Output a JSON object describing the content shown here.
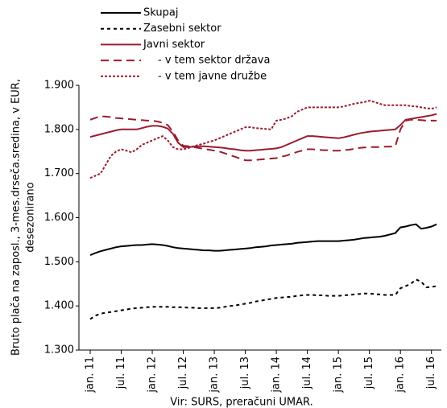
{
  "chart_data": {
    "type": "line",
    "y_label": [
      "Bruto plača na zaposl., 3-mes.drseča.sredina, v EUR,",
      "desezonirano"
    ],
    "source": "Vir: SURS, preračuni UMAR.",
    "categories": [
      "jan. 11",
      null,
      null,
      null,
      null,
      null,
      "jul. 11",
      null,
      null,
      null,
      null,
      null,
      "jan. 12",
      null,
      null,
      null,
      null,
      null,
      "jul. 12",
      null,
      null,
      null,
      null,
      null,
      "jan. 13",
      null,
      null,
      null,
      null,
      null,
      "jul. 13",
      null,
      null,
      null,
      null,
      null,
      "jan. 14",
      null,
      null,
      null,
      null,
      null,
      "jul. 14",
      null,
      null,
      null,
      null,
      null,
      "jan. 15",
      null,
      null,
      null,
      null,
      null,
      "jul. 15",
      null,
      null,
      null,
      null,
      null,
      "jan. 16",
      null,
      null,
      null,
      null,
      null,
      "jul. 16",
      null
    ],
    "ylim": [
      1300,
      1900
    ],
    "yticks": [
      {
        "value": 1300,
        "label": "1.300"
      },
      {
        "value": 1400,
        "label": "1.400"
      },
      {
        "value": 1500,
        "label": "1.500"
      },
      {
        "value": 1600,
        "label": "1.600"
      },
      {
        "value": 1700,
        "label": "1.700"
      },
      {
        "value": 1800,
        "label": "1.800"
      },
      {
        "value": 1900,
        "label": "1.900"
      }
    ],
    "grid": false,
    "series": [
      {
        "name": "Skupaj",
        "color": "#000000",
        "linestyle": "solid",
        "values": [
          1515,
          1520,
          1524,
          1527,
          1530,
          1533,
          1535,
          1536,
          1537,
          1538,
          1538,
          1539,
          1540,
          1539,
          1538,
          1536,
          1533,
          1531,
          1530,
          1529,
          1528,
          1527,
          1526,
          1526,
          1525,
          1525,
          1526,
          1527,
          1528,
          1529,
          1530,
          1531,
          1533,
          1534,
          1535,
          1537,
          1538,
          1539,
          1540,
          1541,
          1543,
          1544,
          1545,
          1546,
          1547,
          1547,
          1547,
          1547,
          1547,
          1548,
          1549,
          1550,
          1552,
          1554,
          1555,
          1556,
          1557,
          1559,
          1562,
          1565,
          1578,
          1580,
          1583,
          1585,
          1575,
          1577,
          1580,
          1585
        ]
      },
      {
        "name": "Zasebni sektor",
        "color": "#000000",
        "linestyle": "dashed",
        "values": [
          1370,
          1378,
          1382,
          1385,
          1386,
          1388,
          1390,
          1392,
          1394,
          1395,
          1396,
          1397,
          1398,
          1398,
          1398,
          1398,
          1397,
          1397,
          1397,
          1396,
          1396,
          1395,
          1395,
          1395,
          1395,
          1396,
          1398,
          1400,
          1401,
          1403,
          1405,
          1407,
          1410,
          1412,
          1414,
          1416,
          1418,
          1419,
          1420,
          1421,
          1423,
          1424,
          1425,
          1425,
          1424,
          1424,
          1423,
          1423,
          1423,
          1424,
          1425,
          1426,
          1427,
          1428,
          1428,
          1427,
          1426,
          1425,
          1425,
          1425,
          1440,
          1445,
          1450,
          1460,
          1455,
          1442,
          1443,
          1445
        ]
      },
      {
        "name": "Javni sektor",
        "color": "#9b1c2e",
        "linestyle": "solid",
        "values": [
          1783,
          1786,
          1789,
          1792,
          1795,
          1798,
          1800,
          1800,
          1800,
          1800,
          1803,
          1806,
          1808,
          1808,
          1806,
          1802,
          1790,
          1770,
          1760,
          1760,
          1761,
          1762,
          1762,
          1761,
          1760,
          1759,
          1758,
          1756,
          1755,
          1753,
          1752,
          1752,
          1753,
          1754,
          1755,
          1756,
          1757,
          1760,
          1765,
          1770,
          1775,
          1780,
          1785,
          1785,
          1784,
          1783,
          1782,
          1781,
          1780,
          1782,
          1785,
          1788,
          1791,
          1793,
          1795,
          1796,
          1797,
          1798,
          1799,
          1800,
          1810,
          1822,
          1824,
          1826,
          1828,
          1830,
          1832,
          1835
        ]
      },
      {
        "name": "- v tem sektor država",
        "color": "#9b1c2e",
        "linestyle": "long-dashed",
        "values": [
          1822,
          1826,
          1830,
          1829,
          1828,
          1826,
          1825,
          1824,
          1823,
          1822,
          1821,
          1820,
          1820,
          1818,
          1815,
          1810,
          1795,
          1775,
          1763,
          1762,
          1760,
          1758,
          1756,
          1754,
          1752,
          1750,
          1746,
          1742,
          1738,
          1734,
          1730,
          1730,
          1731,
          1732,
          1733,
          1734,
          1735,
          1738,
          1741,
          1745,
          1749,
          1752,
          1755,
          1755,
          1754,
          1753,
          1753,
          1752,
          1752,
          1753,
          1754,
          1756,
          1758,
          1759,
          1760,
          1760,
          1760,
          1761,
          1761,
          1762,
          1800,
          1820,
          1822,
          1822,
          1821,
          1820,
          1820,
          1820
        ]
      },
      {
        "name": "- v tem javne družbe",
        "color": "#9b1c2e",
        "linestyle": "dotted",
        "values": [
          1690,
          1695,
          1700,
          1720,
          1740,
          1750,
          1755,
          1752,
          1748,
          1755,
          1765,
          1770,
          1775,
          1780,
          1785,
          1775,
          1760,
          1755,
          1755,
          1758,
          1762,
          1765,
          1768,
          1772,
          1775,
          1780,
          1785,
          1790,
          1795,
          1800,
          1805,
          1805,
          1803,
          1802,
          1801,
          1800,
          1820,
          1822,
          1825,
          1830,
          1840,
          1845,
          1850,
          1850,
          1850,
          1850,
          1850,
          1850,
          1850,
          1852,
          1855,
          1858,
          1860,
          1862,
          1865,
          1862,
          1858,
          1855,
          1855,
          1855,
          1855,
          1855,
          1853,
          1852,
          1850,
          1848,
          1847,
          1850
        ]
      }
    ]
  }
}
